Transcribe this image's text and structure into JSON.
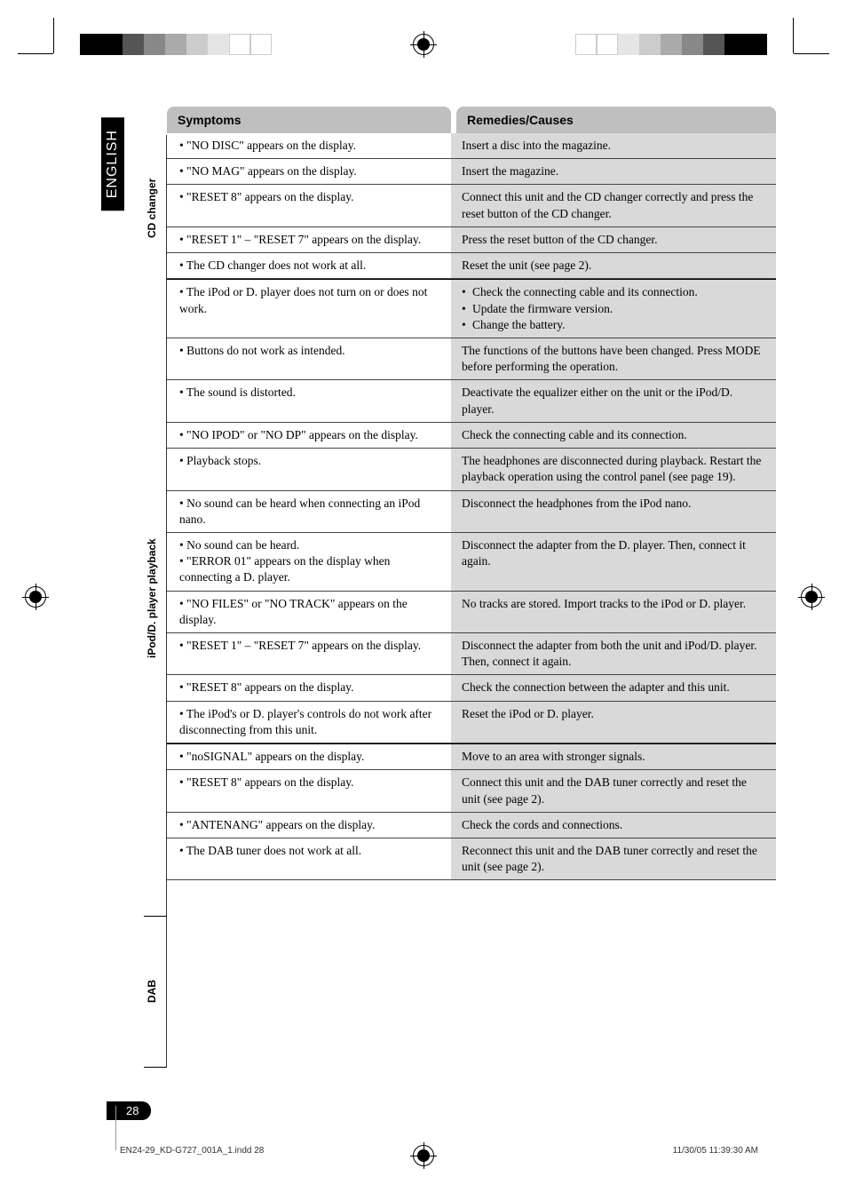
{
  "lang_tab": "ENGLISH",
  "page_number": "28",
  "headers": {
    "symptoms": "Symptoms",
    "remedies": "Remedies/Causes"
  },
  "sections": [
    {
      "side_label": "CD changer",
      "rows": [
        {
          "s": "• \"NO DISC\" appears on the display.",
          "r": "Insert a disc into the magazine."
        },
        {
          "s": "• \"NO MAG\" appears on the display.",
          "r": "Insert the magazine."
        },
        {
          "s": "• \"RESET 8\" appears on the display.",
          "r": "Connect this unit and the CD changer correctly and press the reset button of the CD changer."
        },
        {
          "s": "• \"RESET 1\" – \"RESET 7\" appears on the display.",
          "r": "Press the reset button of the CD changer."
        },
        {
          "s": "• The CD changer does not work at all.",
          "r": "Reset the unit (see page 2)."
        }
      ]
    },
    {
      "side_label": "iPod/D. player playback",
      "rows": [
        {
          "s": "• The iPod or D. player does not turn on or does not work.",
          "r_list": [
            "Check the connecting cable and its connection.",
            "Update the firmware version.",
            "Change the battery."
          ]
        },
        {
          "s": "• Buttons do not work as intended.",
          "r": "The functions of the buttons have been changed. Press MODE before performing the operation."
        },
        {
          "s": "• The sound is distorted.",
          "r": "Deactivate the equalizer either on the unit or the iPod/D. player."
        },
        {
          "s": "• \"NO IPOD\" or \"NO DP\" appears on the display.",
          "r": "Check the connecting cable and its connection."
        },
        {
          "s": "• Playback stops.",
          "r": "The headphones are disconnected during playback. Restart the playback operation using the control panel (see page 19)."
        },
        {
          "s": "• No sound can be heard when connecting an iPod nano.",
          "r": "Disconnect the headphones from the iPod nano."
        },
        {
          "s": "• No sound can be heard.\n• \"ERROR 01\" appears on the display when connecting a D. player.",
          "r": "Disconnect the adapter from the D. player. Then, connect it again."
        },
        {
          "s": "• \"NO FILES\" or \"NO TRACK\" appears on the display.",
          "r": "No tracks are stored. Import tracks to the iPod or D. player."
        },
        {
          "s": "• \"RESET 1\" – \"RESET 7\" appears on the display.",
          "r": "Disconnect the adapter from both the unit and iPod/D. player. Then, connect it again."
        },
        {
          "s": "• \"RESET 8\" appears on the display.",
          "r": "Check the connection between the adapter and this unit."
        },
        {
          "s": "• The iPod's or D. player's controls do not work after disconnecting from this unit.",
          "r": "Reset the iPod or D. player."
        }
      ]
    },
    {
      "side_label": "DAB",
      "rows": [
        {
          "s": "• \"noSIGNAL\" appears on the display.",
          "r": "Move to an area with stronger signals."
        },
        {
          "s": "• \"RESET 8\" appears on the display.",
          "r": "Connect this unit and the DAB tuner correctly and reset the unit (see page 2)."
        },
        {
          "s": "• \"ANTENANG\" appears on the display.",
          "r": "Check the cords and connections."
        },
        {
          "s": "• The DAB tuner does not work at all.",
          "r": "Reconnect this unit and the DAB tuner correctly and reset the unit (see page 2)."
        }
      ]
    }
  ],
  "footer": {
    "left": "EN24-29_KD-G727_001A_1.indd   28",
    "right": "11/30/05   11:39:30 AM"
  },
  "colors": {
    "header_bg": "#bfbfbf",
    "remedy_bg": "#d9d9d9",
    "text": "#000000",
    "tab_bg": "#000000",
    "tab_fg": "#ffffff"
  }
}
